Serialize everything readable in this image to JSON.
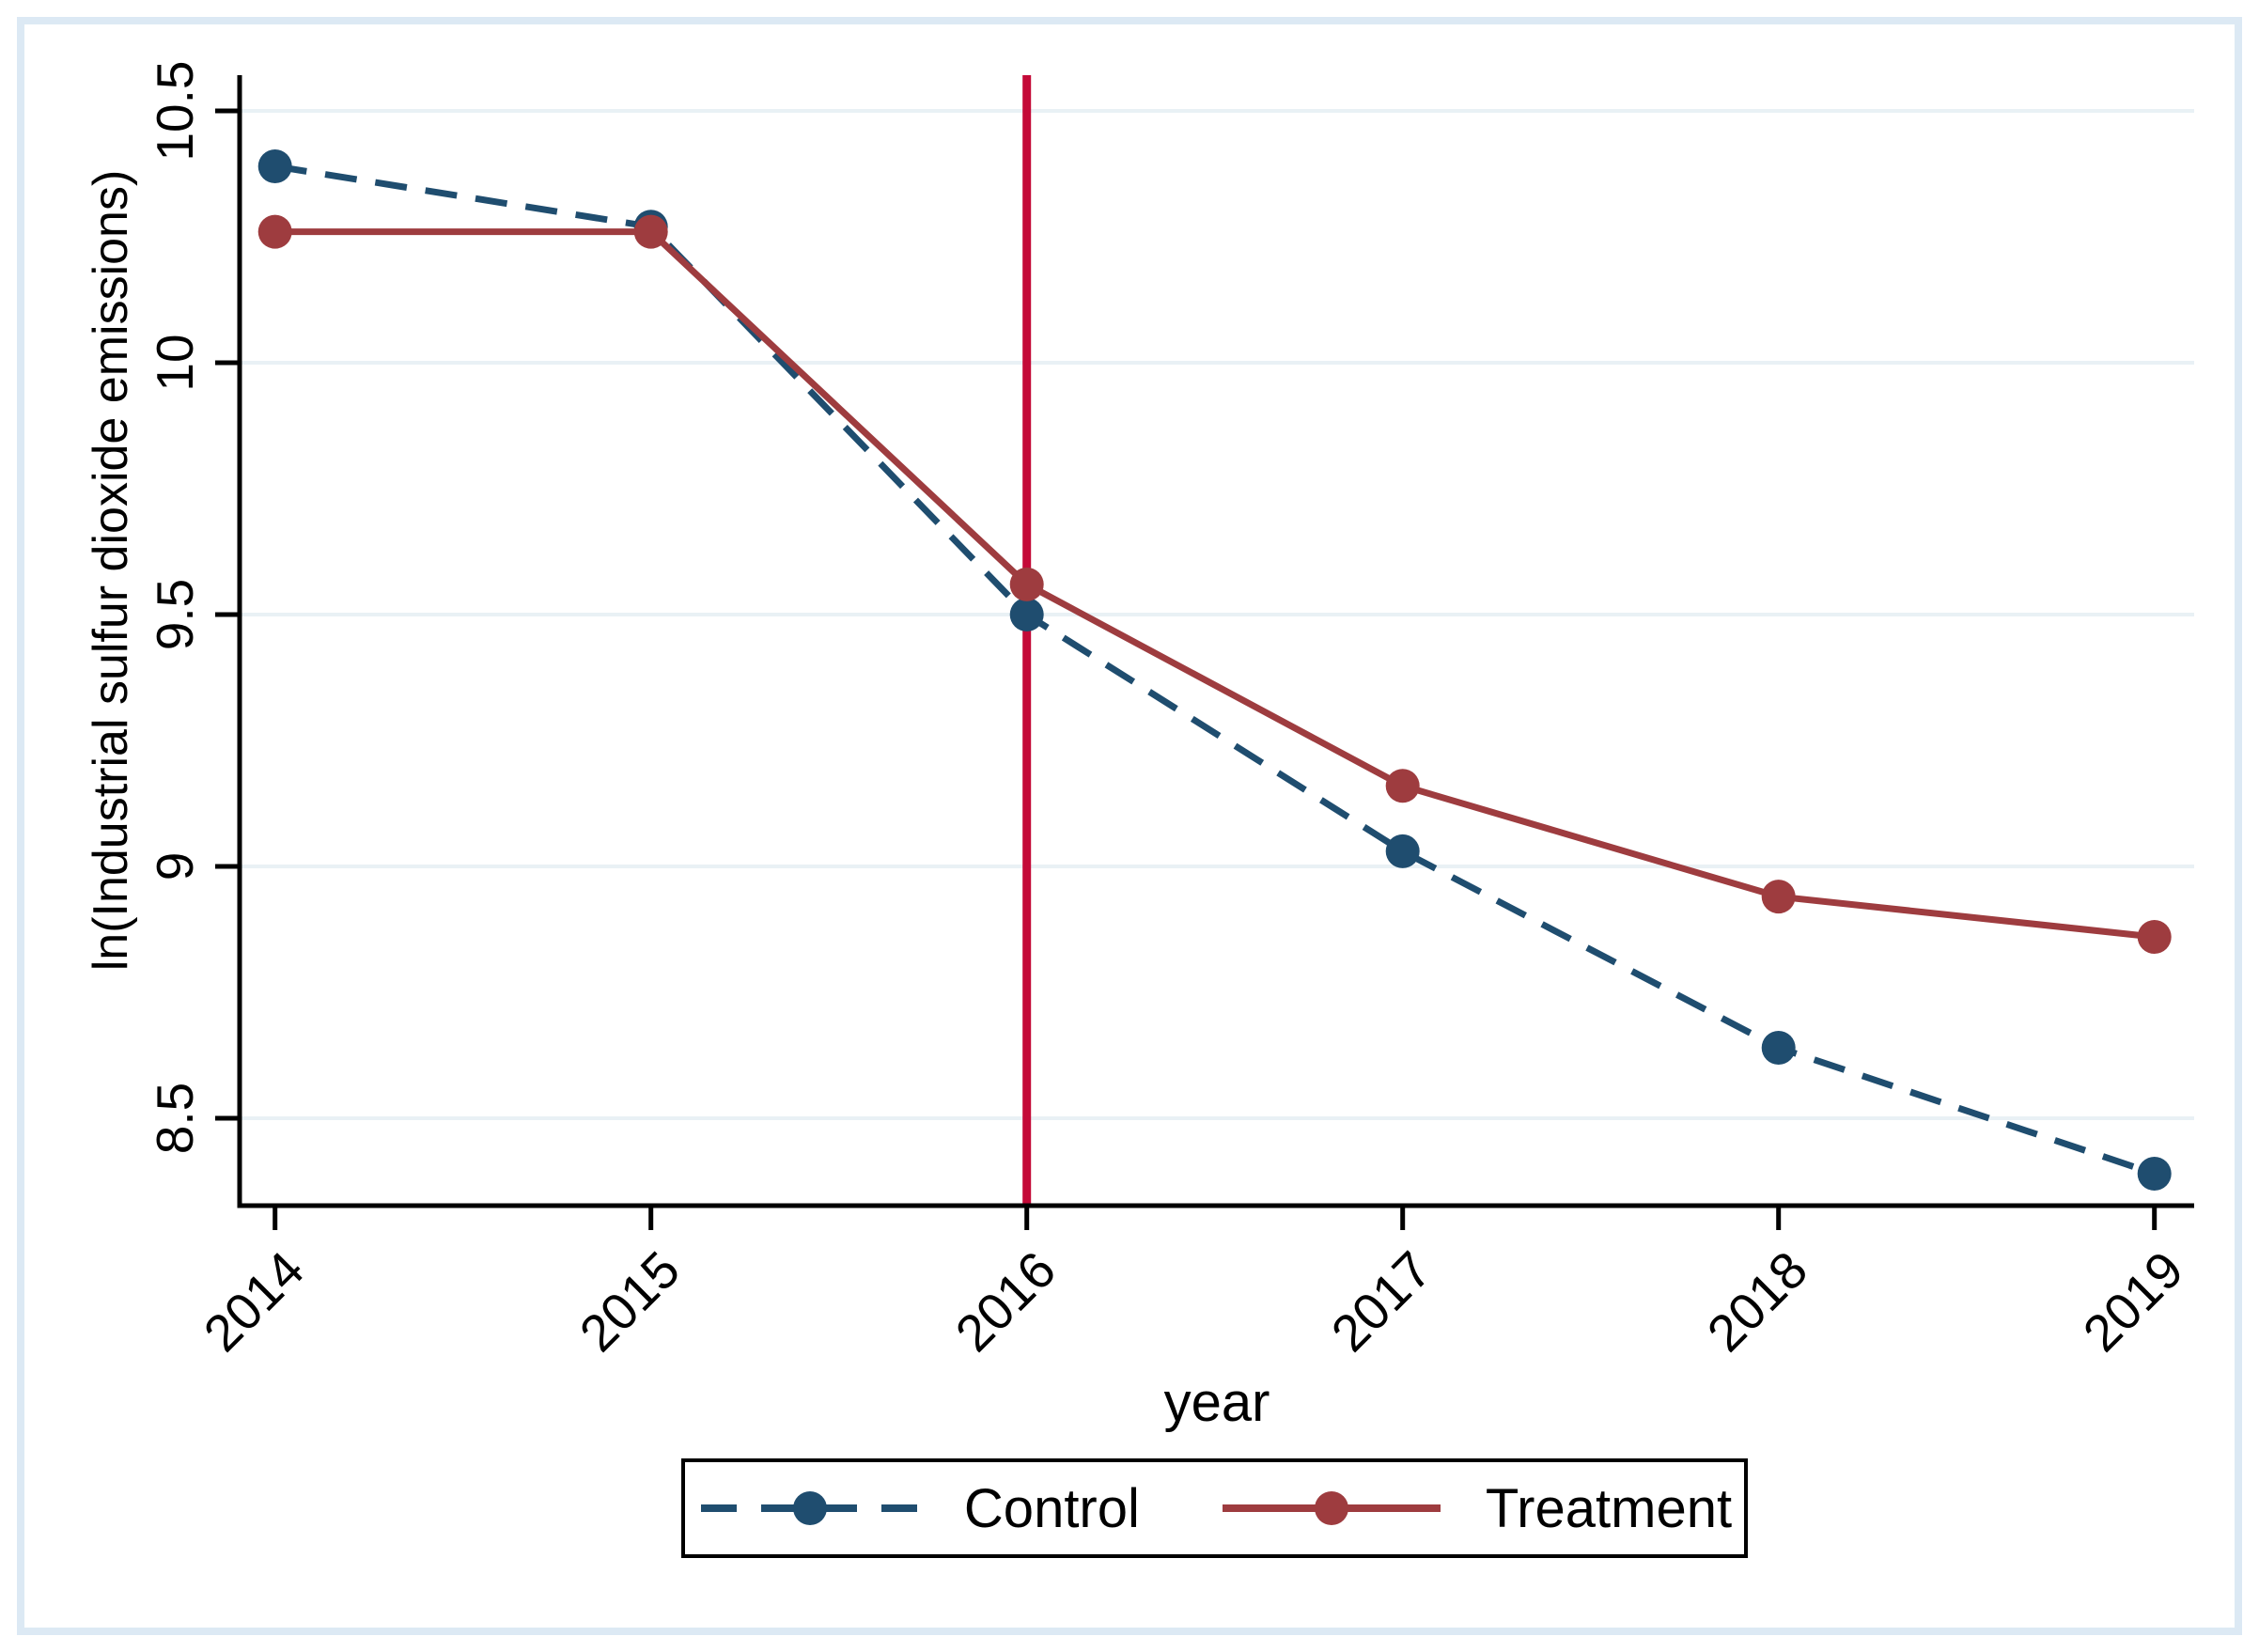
{
  "figure": {
    "kind": "stata-style line chart",
    "background": "#ffffff"
  },
  "colors": {
    "navy": "#1f4d6f",
    "maroon": "#9e3c3f",
    "cranberry": "#c40a38",
    "grid": "#e9f1f5",
    "frame": "#dce9f4",
    "axis": "#000000",
    "text": "#000000"
  },
  "chart_data": {
    "type": "line",
    "title": "",
    "xlabel": "year",
    "ylabel": "ln(Industrial sulfur dioxide emissions)",
    "x": [
      2014,
      2015,
      2016,
      2017,
      2018,
      2019
    ],
    "x_tick_labels": [
      "2014",
      "2015",
      "2016",
      "2017",
      "2018",
      "2019"
    ],
    "y_ticks": [
      8.5,
      9,
      9.5,
      10,
      10.5
    ],
    "y_tick_labels": [
      "8.5",
      "9",
      "9.5",
      "10",
      "10.5"
    ],
    "ylim": [
      8.33,
      10.57
    ],
    "xlim": [
      2013.9,
      2019.11
    ],
    "grid": "horizontal",
    "legend_position": "bottom-center",
    "x_tick_label_angle_deg": 45,
    "series": [
      {
        "name": "Control",
        "style": "dashed",
        "marker": "circle",
        "color_key": "navy",
        "values": [
          10.39,
          10.27,
          9.5,
          9.03,
          8.64,
          8.39
        ]
      },
      {
        "name": "Treatment",
        "style": "solid",
        "marker": "circle",
        "color_key": "maroon",
        "values": [
          10.26,
          10.26,
          9.56,
          9.16,
          8.94,
          8.86
        ]
      }
    ],
    "vline": {
      "x": 2016,
      "color_key": "cranberry"
    }
  },
  "legend": {
    "items": [
      {
        "label": "Control"
      },
      {
        "label": "Treatment"
      }
    ]
  }
}
